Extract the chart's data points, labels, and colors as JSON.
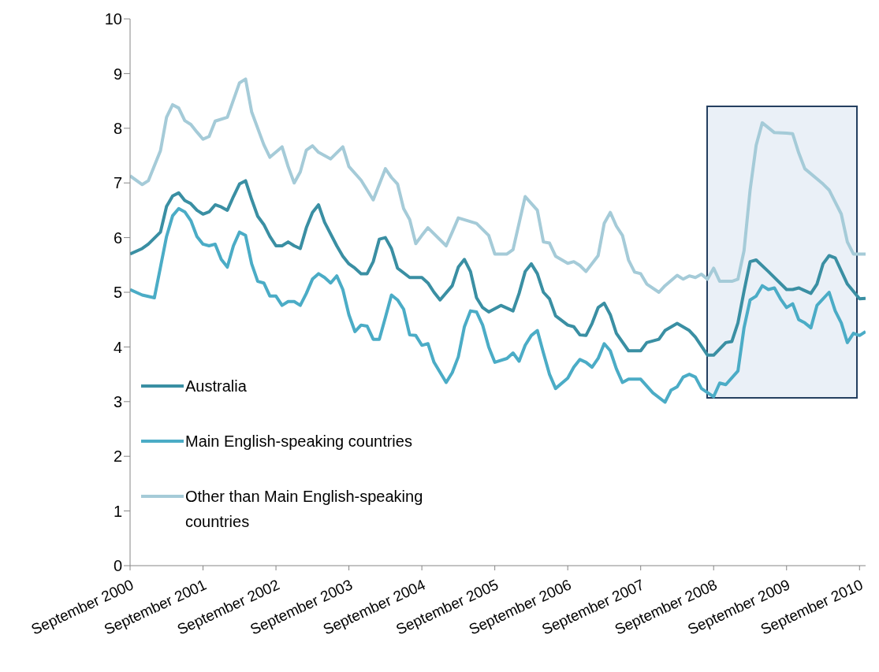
{
  "chart_data": {
    "type": "line",
    "legend": "bottom left",
    "ylim": [
      0,
      10
    ],
    "yticks": [
      0,
      1,
      2,
      3,
      4,
      5,
      6,
      7,
      8,
      9,
      10
    ],
    "xlim": [
      "2000-09",
      "2010-10"
    ],
    "xticks": [
      {
        "value": "2000-09",
        "label": "September 2000"
      },
      {
        "value": "2001-09",
        "label": "September 2001"
      },
      {
        "value": "2002-09",
        "label": "September 2002"
      },
      {
        "value": "2003-09",
        "label": "September 2003"
      },
      {
        "value": "2004-09",
        "label": "September 2004"
      },
      {
        "value": "2005-09",
        "label": "September 2005"
      },
      {
        "value": "2006-09",
        "label": "September 2006"
      },
      {
        "value": "2007-09",
        "label": "September 2007"
      },
      {
        "value": "2008-09",
        "label": "September 2008"
      },
      {
        "value": "2009-09",
        "label": "September 2009"
      },
      {
        "value": "2010-09",
        "label": "September 2010"
      }
    ],
    "series": [
      {
        "name": "Australia",
        "color": "#3a8fa3",
        "x": [
          "2000-09",
          "2000-11",
          "2000-12",
          "2001-02",
          "2001-03",
          "2001-04",
          "2001-05",
          "2001-06",
          "2001-07",
          "2001-08",
          "2001-09",
          "2001-10",
          "2001-11",
          "2001-12",
          "2002-01",
          "2002-02",
          "2002-03",
          "2002-04",
          "2002-05",
          "2002-06",
          "2002-07",
          "2002-08",
          "2002-09",
          "2002-10",
          "2002-11",
          "2002-12",
          "2003-01",
          "2003-02",
          "2003-03",
          "2003-04",
          "2003-05",
          "2003-07",
          "2003-08",
          "2003-09",
          "2003-10",
          "2003-11",
          "2003-12",
          "2004-01",
          "2004-02",
          "2004-03",
          "2004-04",
          "2004-05",
          "2004-07",
          "2004-09",
          "2004-10",
          "2004-11",
          "2004-12",
          "2005-02",
          "2005-03",
          "2005-04",
          "2005-05",
          "2005-06",
          "2005-07",
          "2005-08",
          "2005-10",
          "2005-12",
          "2006-01",
          "2006-02",
          "2006-03",
          "2006-04",
          "2006-05",
          "2006-06",
          "2006-07",
          "2006-09",
          "2006-10",
          "2006-11",
          "2006-12",
          "2007-01",
          "2007-02",
          "2007-03",
          "2007-04",
          "2007-05",
          "2007-07",
          "2007-09",
          "2007-10",
          "2007-12",
          "2008-01",
          "2008-03",
          "2008-05",
          "2008-06",
          "2008-08",
          "2008-09",
          "2008-11",
          "2008-12",
          "2009-01",
          "2009-02",
          "2009-03",
          "2009-04",
          "2009-06",
          "2009-09",
          "2009-10",
          "2009-11",
          "2010-01",
          "2010-02",
          "2010-03",
          "2010-04",
          "2010-05",
          "2010-07",
          "2010-09",
          "2010-10"
        ],
        "values": [
          5.7,
          5.8,
          5.88,
          6.1,
          6.57,
          6.76,
          6.82,
          6.68,
          6.62,
          6.5,
          6.43,
          6.47,
          6.6,
          6.56,
          6.5,
          6.75,
          6.98,
          7.04,
          6.7,
          6.39,
          6.24,
          6.02,
          5.85,
          5.85,
          5.92,
          5.85,
          5.8,
          6.18,
          6.46,
          6.6,
          6.28,
          5.85,
          5.66,
          5.52,
          5.44,
          5.34,
          5.34,
          5.56,
          5.97,
          6.0,
          5.8,
          5.44,
          5.27,
          5.27,
          5.17,
          5.0,
          4.86,
          5.12,
          5.46,
          5.6,
          5.38,
          4.9,
          4.72,
          4.64,
          4.76,
          4.66,
          4.98,
          5.38,
          5.52,
          5.34,
          5.0,
          4.88,
          4.57,
          4.4,
          4.37,
          4.22,
          4.21,
          4.43,
          4.72,
          4.8,
          4.59,
          4.25,
          3.93,
          3.93,
          4.08,
          4.14,
          4.3,
          4.43,
          4.3,
          4.18,
          3.85,
          3.85,
          4.08,
          4.1,
          4.44,
          5.02,
          5.56,
          5.59,
          5.38,
          5.05,
          5.05,
          5.08,
          4.98,
          5.15,
          5.52,
          5.67,
          5.63,
          5.15,
          4.88,
          4.89
        ]
      },
      {
        "name": "Main English-speaking countries",
        "color": "#4bacc6",
        "x": [
          "2000-09",
          "2000-11",
          "2001-01",
          "2001-02",
          "2001-03",
          "2001-04",
          "2001-05",
          "2001-06",
          "2001-07",
          "2001-08",
          "2001-09",
          "2001-10",
          "2001-11",
          "2001-12",
          "2002-01",
          "2002-02",
          "2002-03",
          "2002-04",
          "2002-05",
          "2002-06",
          "2002-07",
          "2002-08",
          "2002-09",
          "2002-10",
          "2002-11",
          "2002-12",
          "2003-01",
          "2003-02",
          "2003-03",
          "2003-04",
          "2003-05",
          "2003-06",
          "2003-07",
          "2003-08",
          "2003-09",
          "2003-10",
          "2003-11",
          "2003-12",
          "2004-01",
          "2004-02",
          "2004-03",
          "2004-04",
          "2004-05",
          "2004-06",
          "2004-07",
          "2004-08",
          "2004-09",
          "2004-10",
          "2004-11",
          "2005-01",
          "2005-02",
          "2005-03",
          "2005-04",
          "2005-05",
          "2005-06",
          "2005-07",
          "2005-08",
          "2005-09",
          "2005-11",
          "2005-12",
          "2006-01",
          "2006-02",
          "2006-03",
          "2006-04",
          "2006-05",
          "2006-06",
          "2006-07",
          "2006-09",
          "2006-10",
          "2006-11",
          "2006-12",
          "2007-01",
          "2007-02",
          "2007-03",
          "2007-04",
          "2007-05",
          "2007-06",
          "2007-07",
          "2007-09",
          "2007-11",
          "2008-01",
          "2008-02",
          "2008-03",
          "2008-04",
          "2008-05",
          "2008-06",
          "2008-07",
          "2008-09",
          "2008-10",
          "2008-11",
          "2009-01",
          "2009-02",
          "2009-03",
          "2009-04",
          "2009-05",
          "2009-06",
          "2009-07",
          "2009-08",
          "2009-09",
          "2009-10",
          "2009-11",
          "2009-12",
          "2010-01",
          "2010-02",
          "2010-04",
          "2010-05",
          "2010-06",
          "2010-07",
          "2010-08",
          "2010-09",
          "2010-10"
        ],
        "values": [
          5.05,
          4.95,
          4.9,
          5.46,
          6.02,
          6.4,
          6.53,
          6.47,
          6.31,
          6.02,
          5.88,
          5.85,
          5.88,
          5.6,
          5.46,
          5.85,
          6.1,
          6.04,
          5.52,
          5.2,
          5.17,
          4.93,
          4.93,
          4.76,
          4.83,
          4.83,
          4.76,
          4.98,
          5.24,
          5.34,
          5.27,
          5.17,
          5.3,
          5.05,
          4.59,
          4.28,
          4.4,
          4.38,
          4.14,
          4.14,
          4.54,
          4.95,
          4.86,
          4.69,
          4.22,
          4.21,
          4.03,
          4.06,
          3.72,
          3.35,
          3.53,
          3.82,
          4.37,
          4.66,
          4.64,
          4.4,
          4.0,
          3.72,
          3.79,
          3.89,
          3.74,
          4.03,
          4.21,
          4.3,
          3.89,
          3.5,
          3.24,
          3.43,
          3.63,
          3.77,
          3.72,
          3.63,
          3.79,
          4.06,
          3.93,
          3.6,
          3.35,
          3.41,
          3.41,
          3.16,
          2.99,
          3.21,
          3.27,
          3.45,
          3.5,
          3.45,
          3.24,
          3.09,
          3.34,
          3.31,
          3.56,
          4.35,
          4.86,
          4.93,
          5.12,
          5.05,
          5.08,
          4.88,
          4.72,
          4.79,
          4.5,
          4.44,
          4.35,
          4.76,
          5.0,
          4.66,
          4.44,
          4.08,
          4.25,
          4.21,
          4.28
        ]
      },
      {
        "name": "Other than Main English-speaking countries",
        "color": "#a5cbd8",
        "x": [
          "2000-09",
          "2000-11",
          "2000-12",
          "2001-02",
          "2001-03",
          "2001-04",
          "2001-05",
          "2001-06",
          "2001-07",
          "2001-08",
          "2001-09",
          "2001-10",
          "2001-11",
          "2002-01",
          "2002-03",
          "2002-04",
          "2002-05",
          "2002-07",
          "2002-08",
          "2002-10",
          "2002-11",
          "2002-12",
          "2003-01",
          "2003-02",
          "2003-03",
          "2003-04",
          "2003-06",
          "2003-08",
          "2003-09",
          "2003-11",
          "2004-01",
          "2004-03",
          "2004-04",
          "2004-05",
          "2004-06",
          "2004-07",
          "2004-08",
          "2004-09",
          "2004-10",
          "2005-01",
          "2005-02",
          "2005-03",
          "2005-06",
          "2005-08",
          "2005-09",
          "2005-11",
          "2005-12",
          "2006-02",
          "2006-04",
          "2006-05",
          "2006-06",
          "2006-07",
          "2006-09",
          "2006-10",
          "2006-11",
          "2006-12",
          "2007-02",
          "2007-03",
          "2007-04",
          "2007-05",
          "2007-06",
          "2007-07",
          "2007-08",
          "2007-09",
          "2007-10",
          "2007-12",
          "2008-01",
          "2008-03",
          "2008-04",
          "2008-05",
          "2008-06",
          "2008-07",
          "2008-08",
          "2008-09",
          "2008-10",
          "2008-12",
          "2009-01",
          "2009-02",
          "2009-03",
          "2009-04",
          "2009-05",
          "2009-07",
          "2009-09",
          "2009-10",
          "2009-11",
          "2009-12",
          "2010-03",
          "2010-04",
          "2010-06",
          "2010-07",
          "2010-08",
          "2010-10"
        ],
        "values": [
          7.13,
          6.97,
          7.04,
          7.59,
          8.2,
          8.43,
          8.37,
          8.14,
          8.07,
          7.93,
          7.8,
          7.85,
          8.13,
          8.2,
          8.83,
          8.9,
          8.3,
          7.7,
          7.47,
          7.66,
          7.3,
          7.0,
          7.2,
          7.6,
          7.68,
          7.56,
          7.44,
          7.66,
          7.3,
          7.05,
          6.69,
          7.26,
          7.1,
          6.98,
          6.53,
          6.33,
          5.89,
          6.04,
          6.18,
          5.85,
          6.1,
          6.36,
          6.26,
          6.04,
          5.7,
          5.7,
          5.78,
          6.75,
          6.5,
          5.92,
          5.9,
          5.66,
          5.53,
          5.56,
          5.49,
          5.38,
          5.67,
          6.26,
          6.46,
          6.21,
          6.04,
          5.59,
          5.37,
          5.34,
          5.15,
          5.0,
          5.12,
          5.31,
          5.24,
          5.3,
          5.27,
          5.33,
          5.24,
          5.44,
          5.2,
          5.2,
          5.24,
          5.76,
          6.87,
          7.69,
          8.1,
          7.92,
          7.91,
          7.9,
          7.55,
          7.26,
          6.98,
          6.87,
          6.43,
          5.92,
          5.7,
          5.7
        ]
      }
    ]
  }
}
